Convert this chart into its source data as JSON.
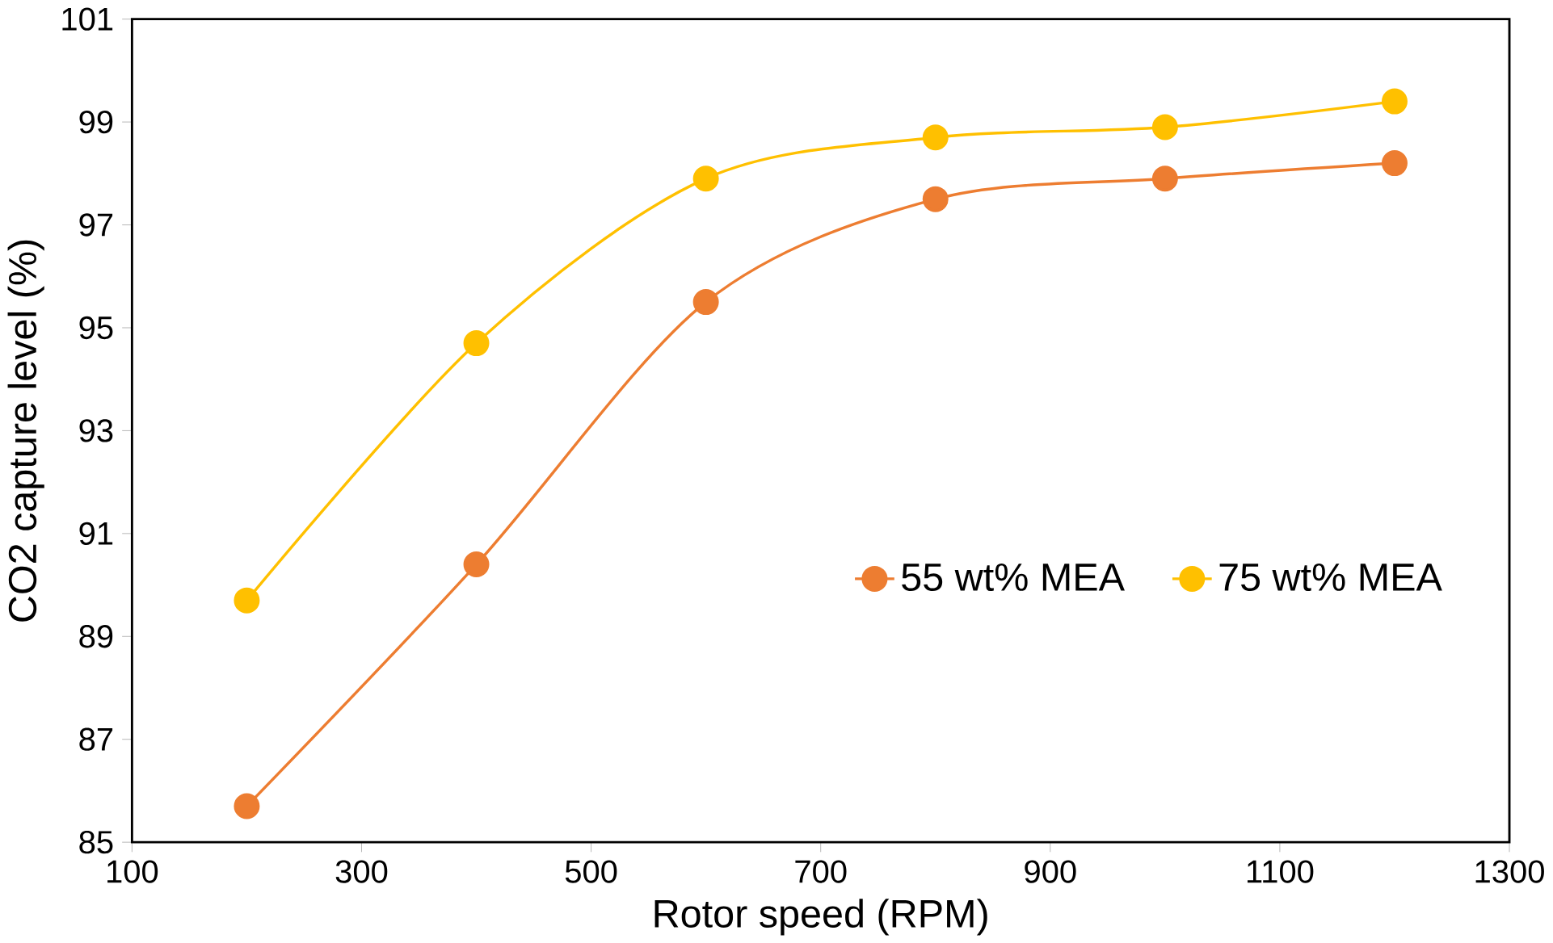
{
  "chart_data": {
    "type": "line",
    "xlabel": "Rotor speed (RPM)",
    "ylabel": "CO2 capture level (%)",
    "x": [
      200,
      400,
      600,
      800,
      1000,
      1200
    ],
    "series": [
      {
        "name": "55 wt% MEA",
        "color": "#ed7d31",
        "values": [
          85.7,
          90.4,
          95.5,
          97.5,
          97.9,
          98.2
        ]
      },
      {
        "name": "75 wt% MEA",
        "color": "#ffc000",
        "values": [
          89.7,
          94.7,
          97.9,
          98.7,
          98.9,
          99.4
        ]
      }
    ],
    "xlim": [
      100,
      1300
    ],
    "xticks": [
      100,
      300,
      500,
      700,
      900,
      1100,
      1300
    ],
    "ylim": [
      85,
      101
    ],
    "yticks": [
      85,
      87,
      89,
      91,
      93,
      95,
      97,
      99,
      101
    ],
    "legend": "right",
    "marker": "circle",
    "grid": false
  }
}
